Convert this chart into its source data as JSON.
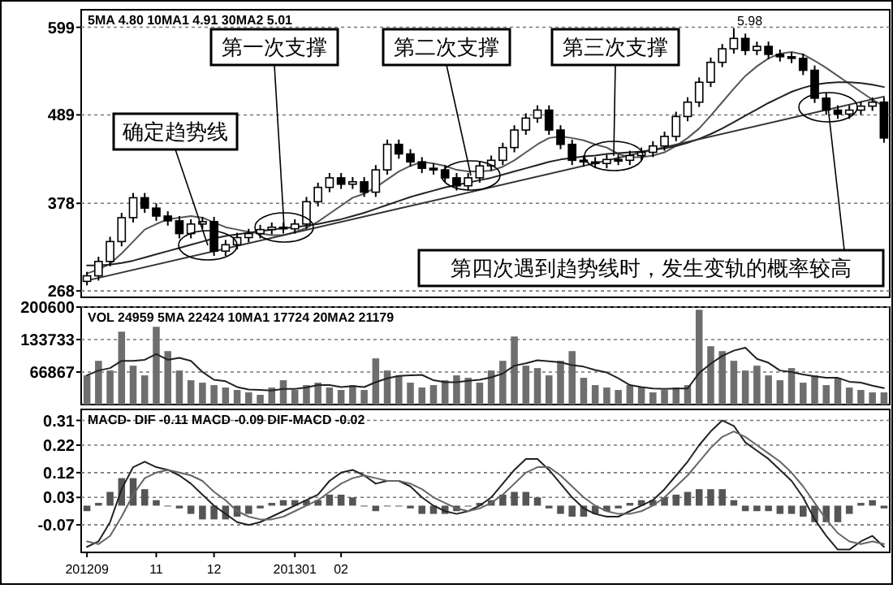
{
  "chart_data": [
    {
      "type": "candlestick",
      "categories": [
        null,
        null,
        null,
        null,
        null,
        null,
        null,
        null,
        null,
        null,
        null,
        null,
        null,
        null,
        null,
        null,
        null,
        null,
        null,
        null,
        null,
        null,
        null,
        null,
        null,
        null,
        null,
        null,
        null,
        null,
        null,
        null,
        null,
        null,
        null,
        null,
        null,
        null,
        null,
        null,
        null,
        null,
        null,
        null,
        null,
        null,
        null,
        null,
        null,
        null,
        null,
        null,
        null,
        null,
        null,
        null,
        null,
        null,
        null,
        null,
        null,
        null,
        null,
        null,
        null,
        null,
        null,
        null,
        null,
        null
      ],
      "ohlc": [
        [
          280,
          292,
          275,
          287
        ],
        [
          287,
          311,
          281,
          305
        ],
        [
          305,
          336,
          299,
          330
        ],
        [
          330,
          366,
          324,
          360
        ],
        [
          360,
          391,
          354,
          385
        ],
        [
          385,
          391,
          366,
          372
        ],
        [
          372,
          378,
          356,
          362
        ],
        [
          362,
          368,
          350,
          356
        ],
        [
          356,
          362,
          334,
          340
        ],
        [
          340,
          358,
          334,
          352
        ],
        [
          352,
          361,
          346,
          355
        ],
        [
          355,
          361,
          312,
          318
        ],
        [
          318,
          332,
          312,
          326
        ],
        [
          326,
          341,
          320,
          335
        ],
        [
          335,
          346,
          329,
          340
        ],
        [
          340,
          351,
          334,
          345
        ],
        [
          345,
          354,
          339,
          348
        ],
        [
          348,
          354,
          340,
          346
        ],
        [
          346,
          358,
          340,
          352
        ],
        [
          352,
          386,
          346,
          380
        ],
        [
          380,
          404,
          374,
          398
        ],
        [
          398,
          416,
          392,
          410
        ],
        [
          410,
          416,
          396,
          402
        ],
        [
          402,
          411,
          396,
          405
        ],
        [
          405,
          411,
          386,
          392
        ],
        [
          392,
          426,
          386,
          420
        ],
        [
          420,
          458,
          414,
          452
        ],
        [
          452,
          458,
          434,
          440
        ],
        [
          440,
          446,
          424,
          430
        ],
        [
          430,
          436,
          416,
          422
        ],
        [
          422,
          428,
          414,
          420
        ],
        [
          420,
          426,
          404,
          410
        ],
        [
          410,
          416,
          394,
          400
        ],
        [
          400,
          416,
          394,
          410
        ],
        [
          410,
          431,
          404,
          425
        ],
        [
          425,
          438,
          419,
          432
        ],
        [
          432,
          454,
          426,
          448
        ],
        [
          448,
          476,
          442,
          470
        ],
        [
          470,
          491,
          464,
          485
        ],
        [
          485,
          501,
          479,
          495
        ],
        [
          495,
          501,
          464,
          470
        ],
        [
          470,
          476,
          446,
          452
        ],
        [
          452,
          458,
          426,
          432
        ],
        [
          432,
          438,
          424,
          430
        ],
        [
          430,
          436,
          422,
          428
        ],
        [
          428,
          439,
          422,
          433
        ],
        [
          433,
          439,
          426,
          432
        ],
        [
          432,
          444,
          426,
          438
        ],
        [
          438,
          448,
          432,
          442
        ],
        [
          442,
          456,
          436,
          450
        ],
        [
          450,
          468,
          444,
          462
        ],
        [
          462,
          493,
          456,
          487
        ],
        [
          487,
          511,
          481,
          505
        ],
        [
          505,
          536,
          499,
          530
        ],
        [
          530,
          561,
          524,
          555
        ],
        [
          555,
          578,
          549,
          572
        ],
        [
          572,
          598,
          566,
          585
        ],
        [
          585,
          591,
          564,
          570
        ],
        [
          570,
          581,
          564,
          575
        ],
        [
          575,
          581,
          559,
          565
        ],
        [
          565,
          571,
          556,
          562
        ],
        [
          562,
          568,
          554,
          560
        ],
        [
          560,
          566,
          539,
          545
        ],
        [
          545,
          551,
          504,
          510
        ],
        [
          510,
          516,
          489,
          495
        ],
        [
          495,
          501,
          484,
          490
        ],
        [
          490,
          501,
          484,
          495
        ],
        [
          495,
          506,
          489,
          500
        ],
        [
          500,
          511,
          494,
          505
        ],
        [
          505,
          511,
          454,
          460
        ]
      ],
      "series": [
        {
          "type": "line",
          "color": "#555555",
          "values": [
            290,
            295,
            302,
            315,
            330,
            345,
            352,
            358,
            360,
            362,
            360,
            354,
            348,
            345,
            342,
            340,
            338,
            338,
            342,
            347,
            355,
            365,
            375,
            385,
            390,
            398,
            408,
            418,
            425,
            430,
            428,
            425,
            420,
            418,
            418,
            419,
            424,
            432,
            442,
            452,
            460,
            462,
            460,
            457,
            452,
            448,
            440,
            436,
            436,
            438,
            442,
            450,
            460,
            472,
            488,
            505,
            522,
            538,
            550,
            560,
            566,
            568,
            565,
            557,
            548,
            538,
            528,
            518,
            508,
            500
          ]
        },
        {
          "type": "line",
          "color": "#222222",
          "values": [
            300,
            300,
            301,
            303,
            306,
            310,
            314,
            318,
            322,
            326,
            330,
            334,
            337,
            339,
            341,
            343,
            345,
            347,
            348,
            350,
            352,
            355,
            358,
            362,
            366,
            371,
            376,
            381,
            386,
            390,
            394,
            398,
            401,
            404,
            407,
            410,
            414,
            418,
            422,
            426,
            430,
            433,
            435,
            437,
            438,
            440,
            441,
            442,
            443,
            445,
            447,
            450,
            454,
            459,
            465,
            472,
            480,
            488,
            496,
            504,
            511,
            518,
            523,
            527,
            529,
            530,
            530,
            529,
            527,
            524
          ]
        },
        {
          "type": "line",
          "color": "#333333",
          "values": [
            281,
            null,
            null,
            null,
            null,
            null,
            null,
            null,
            null,
            null,
            null,
            null,
            null,
            null,
            null,
            null,
            null,
            null,
            null,
            null,
            null,
            null,
            null,
            null,
            null,
            null,
            null,
            null,
            null,
            null,
            null,
            null,
            null,
            null,
            null,
            null,
            null,
            null,
            null,
            null,
            null,
            null,
            null,
            null,
            null,
            null,
            null,
            null,
            null,
            null,
            null,
            null,
            null,
            null,
            null,
            null,
            null,
            null,
            null,
            null,
            null,
            null,
            null,
            null,
            null,
            null,
            null,
            null,
            null,
            512
          ]
        }
      ],
      "ylim": [
        260,
        621
      ],
      "yticks": [
        599,
        489,
        378,
        268
      ],
      "grid": "y",
      "tick_labels": "y",
      "annotations": [
        "5MA 4.80  10MA1 4.91  30MA2 5.01",
        "确定趋势线",
        "第一次支撑",
        "第二次支撑",
        "第三次支撑",
        "第四次遇到趋势线时，发生变轨的概率较高",
        {
          "text": "5.98",
          "y": 598
        }
      ]
    },
    {
      "type": "bar",
      "categories": [
        null,
        null,
        null,
        null,
        null,
        null,
        null,
        null,
        null,
        null,
        null,
        null,
        null,
        null,
        null,
        null,
        null,
        null,
        null,
        null,
        null,
        null,
        null,
        null,
        null,
        null,
        null,
        null,
        null,
        null,
        null,
        null,
        null,
        null,
        null,
        null,
        null,
        null,
        null,
        null,
        null,
        null,
        null,
        null,
        null,
        null,
        null,
        null,
        null,
        null,
        null,
        null,
        null,
        null,
        null,
        null,
        null,
        null,
        null,
        null,
        null,
        null,
        null,
        null,
        null,
        null,
        null,
        null,
        null,
        null
      ],
      "series": [
        {
          "type": "bar",
          "color": "#6e6e6e",
          "values": [
            60000,
            90000,
            70000,
            150000,
            80000,
            60000,
            160000,
            110000,
            70000,
            50000,
            45000,
            40000,
            35000,
            30000,
            25000,
            20000,
            35000,
            50000,
            30000,
            40000,
            45000,
            35000,
            30000,
            40000,
            30000,
            95000,
            70000,
            60000,
            45000,
            35000,
            40000,
            50000,
            60000,
            55000,
            45000,
            70000,
            90000,
            140000,
            80000,
            75000,
            60000,
            90000,
            110000,
            55000,
            40000,
            35000,
            30000,
            40000,
            35000,
            25000,
            30000,
            35000,
            40000,
            195000,
            120000,
            110000,
            90000,
            70000,
            80000,
            60000,
            50000,
            75000,
            45000,
            60000,
            40000,
            55000,
            35000,
            30000,
            25000,
            25000
          ]
        },
        {
          "type": "line",
          "color": "#222222",
          "values": [
            60000,
            70000,
            75000,
            90000,
            90000,
            92000,
            104000,
            92000,
            96000,
            90000,
            67000,
            51000,
            48000,
            36000,
            31000,
            30000,
            29000,
            32000,
            32000,
            35000,
            40000,
            40000,
            36000,
            38000,
            36000,
            46000,
            54000,
            59000,
            60000,
            61000,
            50000,
            46000,
            46000,
            49000,
            51000,
            56000,
            64000,
            80000,
            85000,
            91000,
            89000,
            87000,
            81000,
            78000,
            71000,
            66000,
            54000,
            40000,
            36000,
            33000,
            32000,
            33000,
            33000,
            65000,
            84000,
            100000,
            111000,
            117000,
            94000,
            86000,
            70000,
            67000,
            62000,
            58000,
            55000,
            55000,
            47000,
            45000,
            39000,
            34000
          ]
        }
      ],
      "ylim": [
        0,
        200600
      ],
      "yticks": [
        66867,
        133733,
        200600
      ],
      "grid": "y",
      "tick_labels": "y",
      "annotations": [
        "VOL 24959  5MA 22424  10MA1 17724  20MA2 21179"
      ]
    },
    {
      "type": "line",
      "categories": [
        "201209",
        null,
        null,
        null,
        null,
        null,
        "11",
        null,
        null,
        null,
        null,
        "12",
        null,
        null,
        null,
        null,
        null,
        null,
        "201301",
        null,
        null,
        null,
        "02",
        null,
        null,
        null,
        null,
        null,
        null,
        null,
        null,
        null,
        null,
        null,
        null,
        null,
        null,
        null,
        null,
        null,
        null,
        null,
        null,
        null,
        null,
        null,
        null,
        null,
        null,
        null,
        null,
        null,
        null,
        null,
        null,
        null,
        null,
        null,
        null,
        null,
        null,
        null,
        null,
        null,
        null,
        null,
        null,
        null,
        null,
        null
      ],
      "series": [
        {
          "type": "bar",
          "color": "#555555",
          "values": [
            -0.02,
            0.01,
            0.05,
            0.1,
            0.1,
            0.06,
            0.02,
            0,
            -0.01,
            -0.03,
            -0.05,
            -0.05,
            -0.05,
            -0.04,
            -0.03,
            -0.01,
            0.01,
            0.02,
            0.02,
            0.02,
            0.02,
            0.04,
            0.04,
            0.03,
            0,
            -0.02,
            0,
            0,
            -0.01,
            -0.03,
            -0.03,
            -0.03,
            -0.02,
            0,
            0.01,
            0.02,
            0.04,
            0.05,
            0.05,
            0.03,
            -0.01,
            -0.03,
            -0.04,
            -0.04,
            -0.03,
            -0.02,
            -0.01,
            0.01,
            0.02,
            0.02,
            0.03,
            0.04,
            0.05,
            0.06,
            0.06,
            0.06,
            0.02,
            -0.02,
            -0.02,
            -0.02,
            -0.03,
            -0.03,
            -0.04,
            -0.06,
            -0.06,
            -0.06,
            -0.03,
            0.01,
            0.02,
            -0.01
          ]
        },
        {
          "type": "line",
          "color": "#222222",
          "values": [
            -0.15,
            -0.13,
            -0.06,
            0.06,
            0.14,
            0.16,
            0.14,
            0.13,
            0.11,
            0.08,
            0.04,
            0,
            -0.03,
            -0.06,
            -0.07,
            -0.06,
            -0.04,
            -0.02,
            0,
            0.02,
            0.04,
            0.09,
            0.12,
            0.13,
            0.11,
            0.08,
            0.09,
            0.09,
            0.07,
            0.03,
            0,
            -0.02,
            -0.03,
            -0.02,
            0,
            0.03,
            0.08,
            0.13,
            0.17,
            0.17,
            0.13,
            0.08,
            0.03,
            -0.01,
            -0.03,
            -0.04,
            -0.04,
            -0.02,
            0,
            0.02,
            0.06,
            0.11,
            0.16,
            0.22,
            0.27,
            0.31,
            0.29,
            0.23,
            0.2,
            0.17,
            0.13,
            0.09,
            0.03,
            -0.05,
            -0.11,
            -0.16,
            -0.16,
            -0.13,
            -0.11,
            -0.15
          ]
        },
        {
          "type": "line",
          "color": "#666666",
          "values": [
            -0.13,
            -0.14,
            -0.11,
            -0.04,
            0.04,
            0.1,
            0.12,
            0.13,
            0.12,
            0.11,
            0.09,
            0.05,
            0.02,
            -0.02,
            -0.04,
            -0.05,
            -0.05,
            -0.04,
            -0.02,
            0,
            0.02,
            0.05,
            0.08,
            0.1,
            0.11,
            0.1,
            0.09,
            0.09,
            0.08,
            0.06,
            0.03,
            0.01,
            -0.01,
            -0.02,
            -0.01,
            0.01,
            0.04,
            0.08,
            0.12,
            0.14,
            0.14,
            0.11,
            0.07,
            0.03,
            0,
            -0.02,
            -0.03,
            -0.03,
            -0.02,
            0,
            0.03,
            0.07,
            0.11,
            0.16,
            0.21,
            0.25,
            0.27,
            0.25,
            0.22,
            0.19,
            0.16,
            0.12,
            0.07,
            0.01,
            -0.05,
            -0.1,
            -0.13,
            -0.14,
            -0.13,
            -0.14
          ]
        }
      ],
      "ylim": [
        -0.17,
        0.35
      ],
      "yticks": [
        -0.07,
        0.03,
        0.12,
        0.22,
        0.31
      ],
      "grid": "y",
      "annotations": [
        "MACD- DIF -0.11  MACD -0.09  DIF-MACD -0.02"
      ]
    }
  ]
}
